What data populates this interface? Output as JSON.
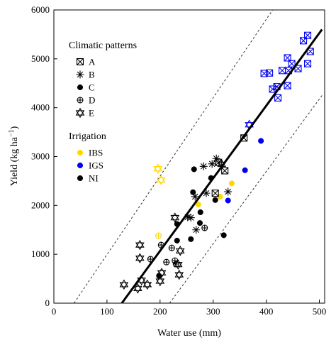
{
  "chart_data": {
    "type": "scatter",
    "xlabel": "Water use (mm)",
    "ylabel_main": "Yield (kg ha",
    "ylabel_sup": "−1",
    "ylabel_close": ")",
    "xlim": [
      0,
      510
    ],
    "ylim": [
      0,
      6000
    ],
    "x_ticks": [
      0,
      100,
      200,
      300,
      400,
      500
    ],
    "y_ticks": [
      0,
      1000,
      2000,
      3000,
      4000,
      5000,
      6000
    ],
    "x_tick_labels": [
      "0",
      "100",
      "200",
      "300",
      "400",
      "500"
    ],
    "y_tick_labels": [
      "0",
      "1000",
      "2000",
      "3000",
      "4000",
      "5000",
      "6000"
    ],
    "grid": false,
    "legend_climate": {
      "title": "Climatic patterns",
      "entries": [
        {
          "key": "A",
          "label": "A",
          "marker": "box-x"
        },
        {
          "key": "B",
          "label": "B",
          "marker": "asterisk"
        },
        {
          "key": "C",
          "label": "C",
          "marker": "filled-circle"
        },
        {
          "key": "D",
          "label": "D",
          "marker": "circle-plus"
        },
        {
          "key": "E",
          "label": "E",
          "marker": "star-of-david"
        }
      ]
    },
    "legend_irrigation": {
      "title": "Irrigation",
      "entries": [
        {
          "key": "IBS",
          "label": "IBS",
          "color": "#FFD700"
        },
        {
          "key": "IGS",
          "label": "IGS",
          "color": "#0000EE"
        },
        {
          "key": "NI",
          "label": "NI",
          "color": "#000000"
        }
      ]
    },
    "fit_line": {
      "x": [
        128,
        505
      ],
      "y": [
        0,
        5600
      ],
      "color": "#000000"
    },
    "upper_band": {
      "x": [
        38,
        412
      ],
      "y": [
        0,
        6000
      ],
      "color": "#333333"
    },
    "lower_band": {
      "x": [
        218,
        505
      ],
      "y": [
        0,
        4250
      ],
      "color": "#333333"
    },
    "points": [
      {
        "x": 478,
        "y": 5480,
        "c": "A",
        "i": "IGS"
      },
      {
        "x": 470,
        "y": 5370,
        "c": "A",
        "i": "IGS"
      },
      {
        "x": 483,
        "y": 5150,
        "c": "A",
        "i": "IGS"
      },
      {
        "x": 440,
        "y": 5020,
        "c": "A",
        "i": "IGS"
      },
      {
        "x": 448,
        "y": 4900,
        "c": "A",
        "i": "IGS"
      },
      {
        "x": 478,
        "y": 4900,
        "c": "A",
        "i": "IGS"
      },
      {
        "x": 460,
        "y": 4800,
        "c": "A",
        "i": "IGS"
      },
      {
        "x": 430,
        "y": 4760,
        "c": "A",
        "i": "IGS"
      },
      {
        "x": 442,
        "y": 4760,
        "c": "A",
        "i": "IGS"
      },
      {
        "x": 396,
        "y": 4700,
        "c": "A",
        "i": "IGS"
      },
      {
        "x": 406,
        "y": 4710,
        "c": "A",
        "i": "IGS"
      },
      {
        "x": 420,
        "y": 4430,
        "c": "A",
        "i": "IGS"
      },
      {
        "x": 412,
        "y": 4380,
        "c": "A",
        "i": "IGS"
      },
      {
        "x": 440,
        "y": 4450,
        "c": "A",
        "i": "IGS"
      },
      {
        "x": 422,
        "y": 4200,
        "c": "A",
        "i": "IGS"
      },
      {
        "x": 368,
        "y": 3650,
        "c": "E",
        "i": "IGS"
      },
      {
        "x": 390,
        "y": 3320,
        "c": "C",
        "i": "IGS"
      },
      {
        "x": 358,
        "y": 3380,
        "c": "A",
        "i": "NI"
      },
      {
        "x": 360,
        "y": 2720,
        "c": "C",
        "i": "IGS"
      },
      {
        "x": 328,
        "y": 2100,
        "c": "C",
        "i": "IGS"
      },
      {
        "x": 335,
        "y": 2450,
        "c": "C",
        "i": "IBS"
      },
      {
        "x": 313,
        "y": 2180,
        "c": "C",
        "i": "IBS"
      },
      {
        "x": 272,
        "y": 2020,
        "c": "C",
        "i": "IBS"
      },
      {
        "x": 196,
        "y": 2750,
        "c": "E",
        "i": "IBS"
      },
      {
        "x": 202,
        "y": 2520,
        "c": "E",
        "i": "IBS"
      },
      {
        "x": 197,
        "y": 1380,
        "c": "D",
        "i": "IBS"
      },
      {
        "x": 306,
        "y": 2960,
        "c": "B",
        "i": "NI"
      },
      {
        "x": 310,
        "y": 2880,
        "c": "A",
        "i": "NI"
      },
      {
        "x": 298,
        "y": 2850,
        "c": "B",
        "i": "NI"
      },
      {
        "x": 316,
        "y": 2840,
        "c": "E",
        "i": "NI"
      },
      {
        "x": 322,
        "y": 2710,
        "c": "A",
        "i": "NI"
      },
      {
        "x": 282,
        "y": 2800,
        "c": "B",
        "i": "NI"
      },
      {
        "x": 264,
        "y": 2740,
        "c": "C",
        "i": "NI"
      },
      {
        "x": 296,
        "y": 2560,
        "c": "C",
        "i": "NI"
      },
      {
        "x": 262,
        "y": 2270,
        "c": "C",
        "i": "NI"
      },
      {
        "x": 266,
        "y": 2180,
        "c": "B",
        "i": "NI"
      },
      {
        "x": 287,
        "y": 2250,
        "c": "B",
        "i": "NI"
      },
      {
        "x": 304,
        "y": 2250,
        "c": "A",
        "i": "NI"
      },
      {
        "x": 328,
        "y": 2280,
        "c": "B",
        "i": "NI"
      },
      {
        "x": 304,
        "y": 2110,
        "c": "C",
        "i": "NI"
      },
      {
        "x": 276,
        "y": 1860,
        "c": "C",
        "i": "NI"
      },
      {
        "x": 252,
        "y": 1760,
        "c": "B",
        "i": "NI"
      },
      {
        "x": 258,
        "y": 1750,
        "c": "B",
        "i": "NI"
      },
      {
        "x": 228,
        "y": 1750,
        "c": "E",
        "i": "NI"
      },
      {
        "x": 232,
        "y": 1620,
        "c": "C",
        "i": "NI"
      },
      {
        "x": 275,
        "y": 1640,
        "c": "C",
        "i": "NI"
      },
      {
        "x": 268,
        "y": 1500,
        "c": "B",
        "i": "NI"
      },
      {
        "x": 284,
        "y": 1540,
        "c": "D",
        "i": "NI"
      },
      {
        "x": 258,
        "y": 1310,
        "c": "C",
        "i": "NI"
      },
      {
        "x": 232,
        "y": 1280,
        "c": "C",
        "i": "NI"
      },
      {
        "x": 320,
        "y": 1390,
        "c": "C",
        "i": "NI"
      },
      {
        "x": 162,
        "y": 1190,
        "c": "E",
        "i": "NI"
      },
      {
        "x": 202,
        "y": 1190,
        "c": "D",
        "i": "NI"
      },
      {
        "x": 222,
        "y": 1130,
        "c": "D",
        "i": "NI"
      },
      {
        "x": 238,
        "y": 1070,
        "c": "E",
        "i": "NI"
      },
      {
        "x": 162,
        "y": 920,
        "c": "E",
        "i": "NI"
      },
      {
        "x": 182,
        "y": 900,
        "c": "D",
        "i": "NI"
      },
      {
        "x": 212,
        "y": 840,
        "c": "D",
        "i": "NI"
      },
      {
        "x": 228,
        "y": 870,
        "c": "D",
        "i": "NI"
      },
      {
        "x": 230,
        "y": 800,
        "c": "D",
        "i": "NI"
      },
      {
        "x": 234,
        "y": 790,
        "c": "E",
        "i": "NI"
      },
      {
        "x": 203,
        "y": 620,
        "c": "E",
        "i": "NI"
      },
      {
        "x": 198,
        "y": 560,
        "c": "C",
        "i": "NI"
      },
      {
        "x": 236,
        "y": 580,
        "c": "E",
        "i": "NI"
      },
      {
        "x": 200,
        "y": 450,
        "c": "E",
        "i": "NI"
      },
      {
        "x": 165,
        "y": 470,
        "c": "E",
        "i": "NI"
      },
      {
        "x": 176,
        "y": 380,
        "c": "E",
        "i": "NI"
      },
      {
        "x": 158,
        "y": 300,
        "c": "E",
        "i": "NI"
      },
      {
        "x": 132,
        "y": 380,
        "c": "E",
        "i": "NI"
      }
    ]
  }
}
